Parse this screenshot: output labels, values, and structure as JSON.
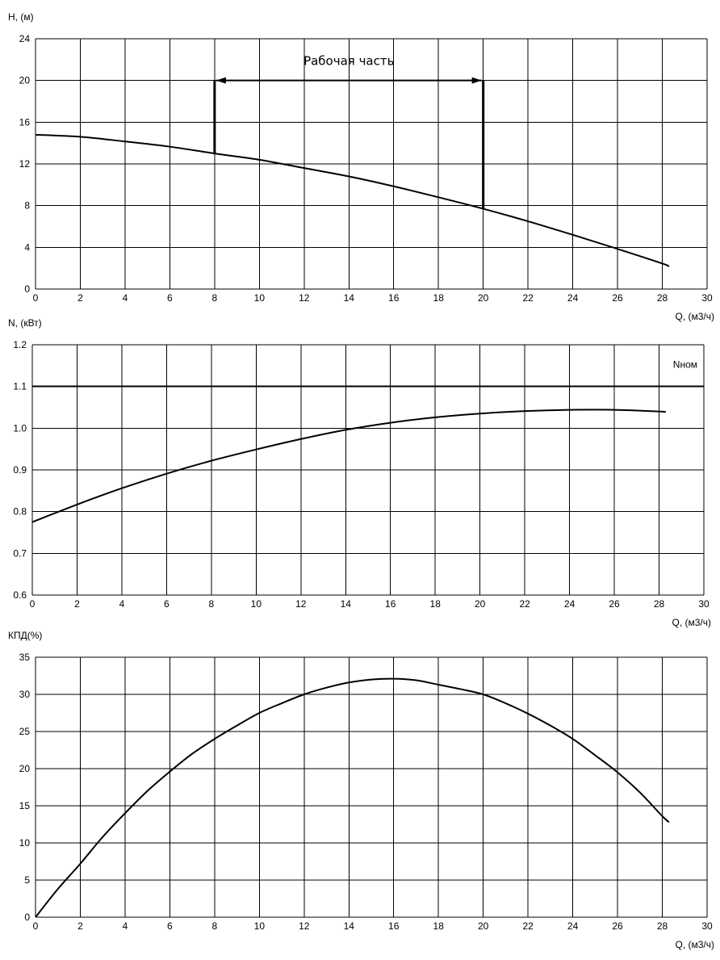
{
  "chart_data": [
    {
      "id": "head",
      "type": "line",
      "ylabel": "H, (м)",
      "xlabel": "Q, (м3/ч)",
      "xlim": [
        0,
        30
      ],
      "ylim": [
        0,
        24
      ],
      "xticks": [
        0,
        2,
        4,
        6,
        8,
        10,
        12,
        14,
        16,
        18,
        20,
        22,
        24,
        26,
        28,
        30
      ],
      "yticks": [
        0,
        4,
        8,
        12,
        16,
        20,
        24
      ],
      "ytick_decimals": 0,
      "grid": true,
      "series": [
        {
          "x": [
            0,
            2,
            4,
            6,
            8,
            10,
            12,
            14,
            16,
            18,
            20,
            22,
            24,
            26,
            28,
            28.3
          ],
          "y": [
            14.8,
            14.6,
            14.15,
            13.65,
            13.0,
            12.4,
            11.6,
            10.8,
            9.85,
            8.8,
            7.7,
            6.5,
            5.2,
            3.85,
            2.45,
            2.15
          ]
        }
      ],
      "annotations": [
        {
          "type": "working_range",
          "text": "Рабочая часть",
          "x_start": 8,
          "x_end": 20,
          "y_level": 20,
          "y_bottom_start": 13.0,
          "y_bottom_end": 7.7
        }
      ]
    },
    {
      "id": "power",
      "type": "line",
      "ylabel": "N, (кВт)",
      "xlabel": "Q, (м3/ч)",
      "xlim": [
        0,
        30
      ],
      "ylim": [
        0.6,
        1.2
      ],
      "xticks": [
        0,
        2,
        4,
        6,
        8,
        10,
        12,
        14,
        16,
        18,
        20,
        22,
        24,
        26,
        28,
        30
      ],
      "yticks": [
        0.6,
        0.7,
        0.8,
        0.9,
        1.0,
        1.1,
        1.2
      ],
      "ytick_decimals": 1,
      "grid": true,
      "series": [
        {
          "x": [
            0,
            2,
            4,
            6,
            8,
            10,
            12,
            14,
            16,
            18,
            20,
            22,
            24,
            26,
            28,
            28.3
          ],
          "y": [
            0.775,
            0.817,
            0.856,
            0.891,
            0.922,
            0.949,
            0.974,
            0.996,
            1.013,
            1.026,
            1.035,
            1.041,
            1.044,
            1.044,
            1.04,
            1.039
          ]
        }
      ],
      "annotations": [
        {
          "type": "hline",
          "text": "Nном",
          "y": 1.1
        }
      ]
    },
    {
      "id": "efficiency",
      "type": "line",
      "ylabel": "КПД(%)",
      "xlabel": "Q, (м3/ч)",
      "xlim": [
        0,
        30
      ],
      "ylim": [
        0,
        35
      ],
      "xticks": [
        0,
        2,
        4,
        6,
        8,
        10,
        12,
        14,
        16,
        18,
        20,
        22,
        24,
        26,
        28,
        30
      ],
      "yticks": [
        0,
        5,
        10,
        15,
        20,
        25,
        30,
        35
      ],
      "ytick_decimals": 0,
      "grid": true,
      "series": [
        {
          "x": [
            0,
            1,
            2,
            3,
            4,
            5,
            6,
            7,
            8,
            9,
            10,
            11,
            12,
            13,
            14,
            15,
            16,
            17,
            18,
            19,
            20,
            21,
            22,
            23,
            24,
            25,
            26,
            27,
            28,
            28.3
          ],
          "y": [
            0,
            3.8,
            7.2,
            10.8,
            14.0,
            17.0,
            19.6,
            22.0,
            24.0,
            25.8,
            27.5,
            28.8,
            30.0,
            30.9,
            31.6,
            32.0,
            32.1,
            31.9,
            31.3,
            30.7,
            30.0,
            28.8,
            27.4,
            25.8,
            24.0,
            21.8,
            19.5,
            16.8,
            13.6,
            12.8
          ]
        }
      ],
      "annotations": []
    }
  ]
}
